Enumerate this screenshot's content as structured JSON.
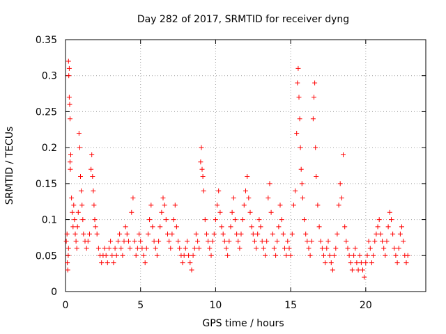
{
  "chart_data": {
    "type": "scatter",
    "title": "Day 282 of 2017, SRMTID for receiver dyng",
    "xlabel": "GPS time / hours",
    "ylabel": "SRMTID / TECUs",
    "xlim": [
      0,
      24
    ],
    "ylim": [
      0,
      0.35
    ],
    "x_ticks": [
      0,
      5,
      10,
      15,
      20
    ],
    "y_ticks": [
      0,
      0.05,
      0.1,
      0.15,
      0.2,
      0.25,
      0.3,
      0.35
    ],
    "x_tick_labels": [
      "0",
      "5",
      "10",
      "15",
      "20"
    ],
    "y_tick_labels": [
      "0",
      "0.05",
      "0.1",
      "0.15",
      "0.2",
      "0.25",
      "0.3",
      "0.35"
    ],
    "grid": true,
    "marker": "plus",
    "color": "#ff0000",
    "series": [
      {
        "name": "SRMTID",
        "points": [
          [
            0.05,
            0.07
          ],
          [
            0.1,
            0.08
          ],
          [
            0.12,
            0.04
          ],
          [
            0.15,
            0.03
          ],
          [
            0.18,
            0.05
          ],
          [
            0.2,
            0.06
          ],
          [
            0.2,
            0.32
          ],
          [
            0.22,
            0.3
          ],
          [
            0.25,
            0.31
          ],
          [
            0.25,
            0.27
          ],
          [
            0.28,
            0.26
          ],
          [
            0.3,
            0.24
          ],
          [
            0.3,
            0.18
          ],
          [
            0.32,
            0.17
          ],
          [
            0.35,
            0.19
          ],
          [
            0.4,
            0.13
          ],
          [
            0.45,
            0.11
          ],
          [
            0.5,
            0.09
          ],
          [
            0.55,
            0.12
          ],
          [
            0.6,
            0.1
          ],
          [
            0.65,
            0.08
          ],
          [
            0.7,
            0.07
          ],
          [
            0.75,
            0.06
          ],
          [
            0.8,
            0.09
          ],
          [
            0.85,
            0.11
          ],
          [
            0.9,
            0.22
          ],
          [
            0.95,
            0.2
          ],
          [
            1.0,
            0.16
          ],
          [
            1.05,
            0.14
          ],
          [
            1.1,
            0.12
          ],
          [
            1.15,
            0.1
          ],
          [
            1.2,
            0.08
          ],
          [
            1.3,
            0.07
          ],
          [
            1.4,
            0.06
          ],
          [
            1.5,
            0.07
          ],
          [
            1.6,
            0.08
          ],
          [
            1.7,
            0.17
          ],
          [
            1.75,
            0.19
          ],
          [
            1.8,
            0.16
          ],
          [
            1.85,
            0.14
          ],
          [
            1.9,
            0.12
          ],
          [
            1.95,
            0.1
          ],
          [
            2.0,
            0.09
          ],
          [
            2.1,
            0.08
          ],
          [
            2.2,
            0.06
          ],
          [
            2.3,
            0.05
          ],
          [
            2.4,
            0.04
          ],
          [
            2.5,
            0.05
          ],
          [
            2.6,
            0.06
          ],
          [
            2.7,
            0.05
          ],
          [
            2.8,
            0.04
          ],
          [
            2.9,
            0.06
          ],
          [
            3.0,
            0.07
          ],
          [
            3.1,
            0.05
          ],
          [
            3.2,
            0.04
          ],
          [
            3.3,
            0.06
          ],
          [
            3.4,
            0.05
          ],
          [
            3.5,
            0.07
          ],
          [
            3.6,
            0.08
          ],
          [
            3.7,
            0.06
          ],
          [
            3.8,
            0.05
          ],
          [
            3.9,
            0.07
          ],
          [
            4.0,
            0.09
          ],
          [
            4.1,
            0.08
          ],
          [
            4.2,
            0.07
          ],
          [
            4.3,
            0.06
          ],
          [
            4.4,
            0.11
          ],
          [
            4.5,
            0.13
          ],
          [
            4.6,
            0.07
          ],
          [
            4.7,
            0.05
          ],
          [
            4.8,
            0.06
          ],
          [
            4.9,
            0.08
          ],
          [
            5.0,
            0.07
          ],
          [
            5.1,
            0.06
          ],
          [
            5.2,
            0.05
          ],
          [
            5.3,
            0.04
          ],
          [
            5.4,
            0.06
          ],
          [
            5.5,
            0.08
          ],
          [
            5.6,
            0.1
          ],
          [
            5.7,
            0.12
          ],
          [
            5.8,
            0.09
          ],
          [
            5.9,
            0.07
          ],
          [
            6.0,
            0.06
          ],
          [
            6.1,
            0.05
          ],
          [
            6.2,
            0.07
          ],
          [
            6.3,
            0.09
          ],
          [
            6.4,
            0.11
          ],
          [
            6.5,
            0.13
          ],
          [
            6.6,
            0.12
          ],
          [
            6.7,
            0.1
          ],
          [
            6.8,
            0.08
          ],
          [
            6.9,
            0.07
          ],
          [
            7.0,
            0.06
          ],
          [
            7.1,
            0.08
          ],
          [
            7.2,
            0.1
          ],
          [
            7.3,
            0.12
          ],
          [
            7.4,
            0.09
          ],
          [
            7.5,
            0.07
          ],
          [
            7.6,
            0.06
          ],
          [
            7.7,
            0.05
          ],
          [
            7.8,
            0.04
          ],
          [
            7.9,
            0.05
          ],
          [
            8.0,
            0.06
          ],
          [
            8.1,
            0.07
          ],
          [
            8.2,
            0.05
          ],
          [
            8.3,
            0.04
          ],
          [
            8.4,
            0.03
          ],
          [
            8.5,
            0.05
          ],
          [
            8.6,
            0.06
          ],
          [
            8.7,
            0.08
          ],
          [
            8.8,
            0.07
          ],
          [
            8.9,
            0.06
          ],
          [
            9.0,
            0.18
          ],
          [
            9.05,
            0.2
          ],
          [
            9.1,
            0.17
          ],
          [
            9.15,
            0.16
          ],
          [
            9.2,
            0.14
          ],
          [
            9.3,
            0.1
          ],
          [
            9.4,
            0.08
          ],
          [
            9.5,
            0.07
          ],
          [
            9.6,
            0.06
          ],
          [
            9.7,
            0.05
          ],
          [
            9.8,
            0.07
          ],
          [
            9.9,
            0.08
          ],
          [
            10.0,
            0.1
          ],
          [
            10.1,
            0.12
          ],
          [
            10.2,
            0.14
          ],
          [
            10.3,
            0.11
          ],
          [
            10.4,
            0.09
          ],
          [
            10.5,
            0.08
          ],
          [
            10.6,
            0.07
          ],
          [
            10.7,
            0.06
          ],
          [
            10.8,
            0.05
          ],
          [
            10.9,
            0.07
          ],
          [
            11.0,
            0.09
          ],
          [
            11.1,
            0.11
          ],
          [
            11.2,
            0.13
          ],
          [
            11.3,
            0.1
          ],
          [
            11.4,
            0.08
          ],
          [
            11.5,
            0.07
          ],
          [
            11.6,
            0.06
          ],
          [
            11.7,
            0.08
          ],
          [
            11.8,
            0.1
          ],
          [
            11.9,
            0.12
          ],
          [
            12.0,
            0.14
          ],
          [
            12.1,
            0.16
          ],
          [
            12.2,
            0.13
          ],
          [
            12.3,
            0.11
          ],
          [
            12.4,
            0.09
          ],
          [
            12.5,
            0.08
          ],
          [
            12.6,
            0.07
          ],
          [
            12.7,
            0.06
          ],
          [
            12.8,
            0.08
          ],
          [
            12.9,
            0.1
          ],
          [
            13.0,
            0.09
          ],
          [
            13.1,
            0.07
          ],
          [
            13.2,
            0.06
          ],
          [
            13.3,
            0.05
          ],
          [
            13.4,
            0.07
          ],
          [
            13.5,
            0.13
          ],
          [
            13.6,
            0.15
          ],
          [
            13.7,
            0.11
          ],
          [
            13.8,
            0.08
          ],
          [
            13.9,
            0.06
          ],
          [
            14.0,
            0.05
          ],
          [
            14.1,
            0.07
          ],
          [
            14.2,
            0.09
          ],
          [
            14.3,
            0.12
          ],
          [
            14.4,
            0.1
          ],
          [
            14.5,
            0.08
          ],
          [
            14.6,
            0.06
          ],
          [
            14.7,
            0.05
          ],
          [
            14.8,
            0.07
          ],
          [
            14.9,
            0.06
          ],
          [
            15.0,
            0.05
          ],
          [
            15.1,
            0.08
          ],
          [
            15.2,
            0.12
          ],
          [
            15.3,
            0.14
          ],
          [
            15.4,
            0.22
          ],
          [
            15.45,
            0.29
          ],
          [
            15.5,
            0.31
          ],
          [
            15.55,
            0.27
          ],
          [
            15.6,
            0.24
          ],
          [
            15.65,
            0.2
          ],
          [
            15.7,
            0.17
          ],
          [
            15.75,
            0.15
          ],
          [
            15.8,
            0.13
          ],
          [
            15.9,
            0.1
          ],
          [
            16.0,
            0.08
          ],
          [
            16.1,
            0.07
          ],
          [
            16.2,
            0.06
          ],
          [
            16.3,
            0.05
          ],
          [
            16.4,
            0.07
          ],
          [
            16.5,
            0.24
          ],
          [
            16.55,
            0.27
          ],
          [
            16.6,
            0.29
          ],
          [
            16.65,
            0.2
          ],
          [
            16.7,
            0.16
          ],
          [
            16.8,
            0.12
          ],
          [
            16.9,
            0.09
          ],
          [
            17.0,
            0.07
          ],
          [
            17.1,
            0.06
          ],
          [
            17.2,
            0.05
          ],
          [
            17.3,
            0.04
          ],
          [
            17.4,
            0.06
          ],
          [
            17.5,
            0.07
          ],
          [
            17.6,
            0.05
          ],
          [
            17.7,
            0.04
          ],
          [
            17.8,
            0.03
          ],
          [
            17.9,
            0.05
          ],
          [
            18.0,
            0.06
          ],
          [
            18.1,
            0.08
          ],
          [
            18.2,
            0.12
          ],
          [
            18.3,
            0.15
          ],
          [
            18.4,
            0.13
          ],
          [
            18.5,
            0.19
          ],
          [
            18.6,
            0.09
          ],
          [
            18.7,
            0.07
          ],
          [
            18.8,
            0.06
          ],
          [
            18.9,
            0.05
          ],
          [
            19.0,
            0.04
          ],
          [
            19.1,
            0.03
          ],
          [
            19.2,
            0.05
          ],
          [
            19.3,
            0.06
          ],
          [
            19.4,
            0.04
          ],
          [
            19.5,
            0.03
          ],
          [
            19.6,
            0.05
          ],
          [
            19.7,
            0.04
          ],
          [
            19.8,
            0.03
          ],
          [
            19.9,
            0.02
          ],
          [
            20.0,
            0.04
          ],
          [
            20.1,
            0.05
          ],
          [
            20.2,
            0.07
          ],
          [
            20.3,
            0.06
          ],
          [
            20.4,
            0.04
          ],
          [
            20.5,
            0.05
          ],
          [
            20.6,
            0.07
          ],
          [
            20.7,
            0.08
          ],
          [
            20.8,
            0.09
          ],
          [
            20.9,
            0.1
          ],
          [
            21.0,
            0.08
          ],
          [
            21.1,
            0.07
          ],
          [
            21.2,
            0.06
          ],
          [
            21.3,
            0.05
          ],
          [
            21.4,
            0.07
          ],
          [
            21.5,
            0.09
          ],
          [
            21.6,
            0.11
          ],
          [
            21.7,
            0.1
          ],
          [
            21.8,
            0.08
          ],
          [
            21.9,
            0.06
          ],
          [
            22.0,
            0.05
          ],
          [
            22.1,
            0.04
          ],
          [
            22.2,
            0.06
          ],
          [
            22.3,
            0.08
          ],
          [
            22.4,
            0.09
          ],
          [
            22.5,
            0.07
          ],
          [
            22.6,
            0.05
          ],
          [
            22.7,
            0.04
          ],
          [
            22.8,
            0.05
          ]
        ]
      }
    ]
  }
}
